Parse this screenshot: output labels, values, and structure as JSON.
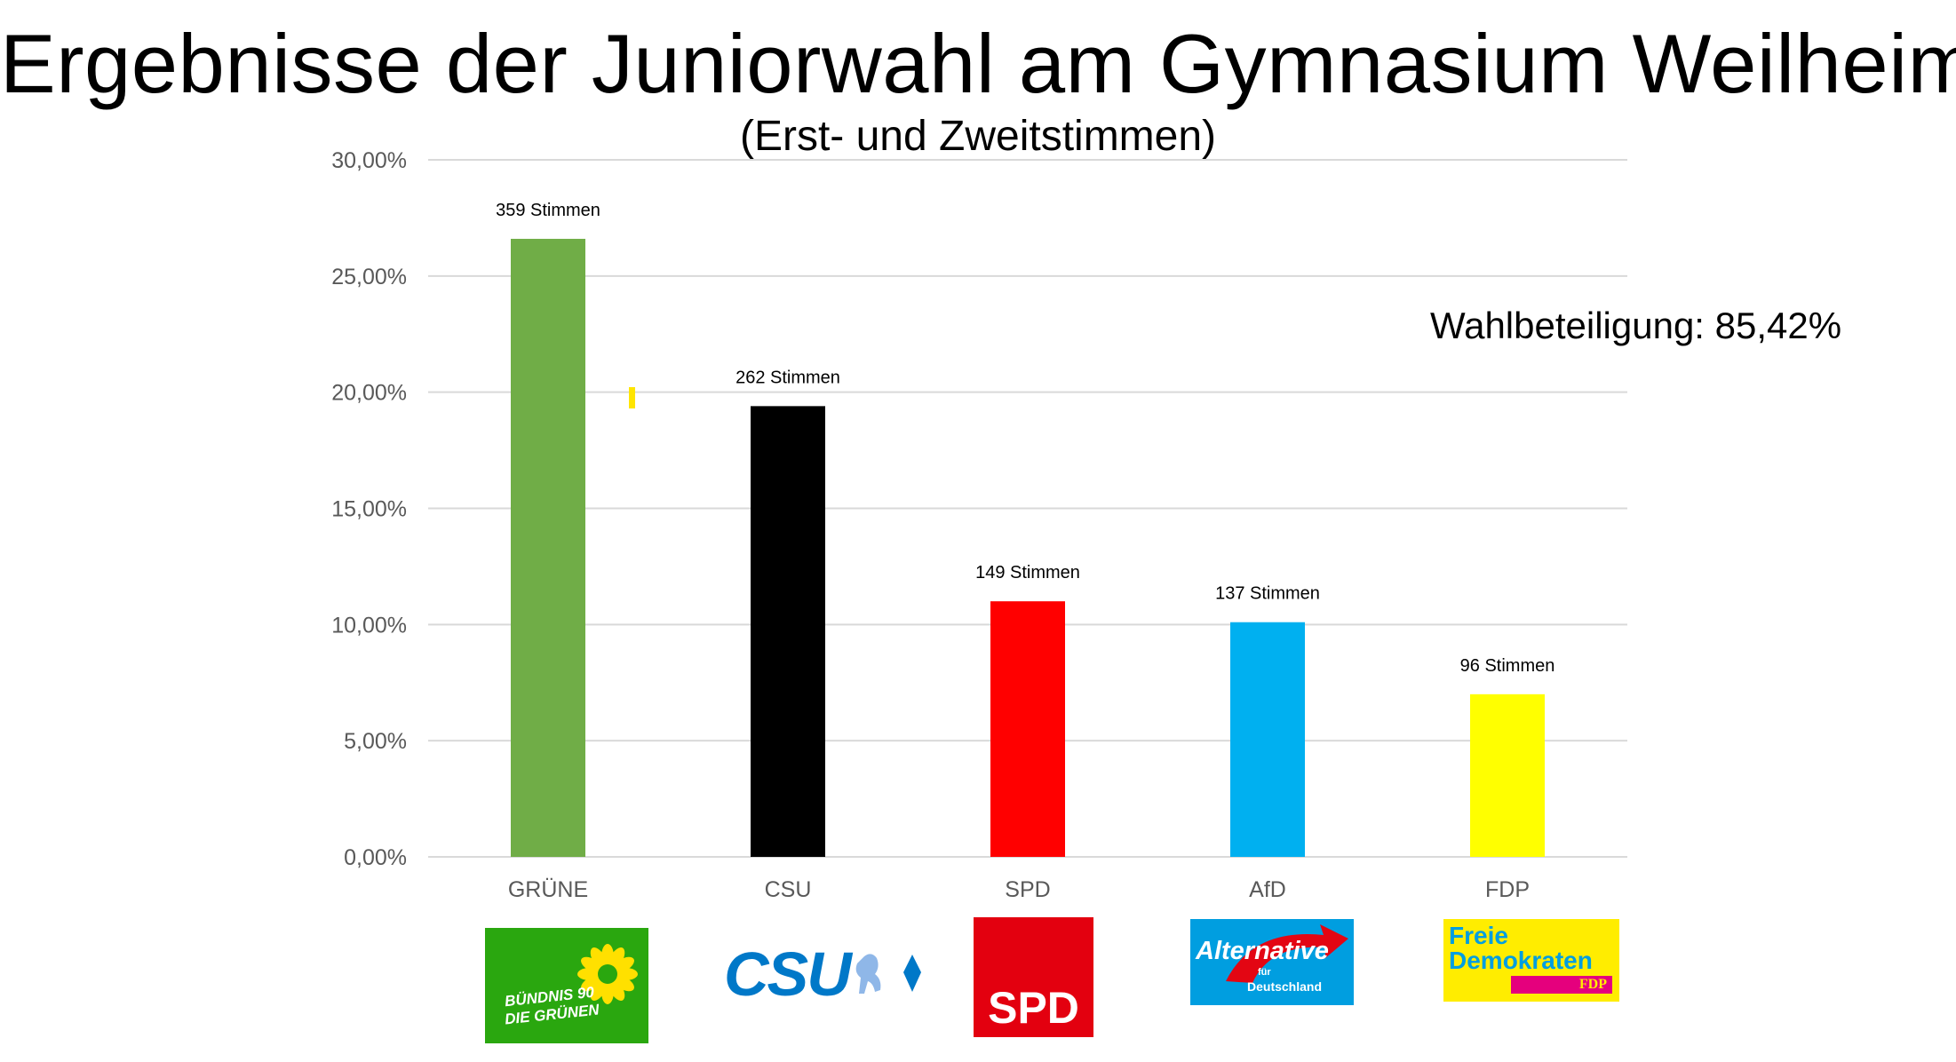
{
  "header": {
    "title": "Ergebnisse der Juniorwahl am Gymnasium Weilheim",
    "subtitle": "(Erst- und Zweitstimmen)"
  },
  "turnout_label": "Wahlbeteiligung: 85,42%",
  "chart_data": {
    "type": "bar",
    "categories": [
      "GRÜNE",
      "CSU",
      "SPD",
      "AfD",
      "FDP"
    ],
    "values": [
      26.6,
      19.4,
      11.0,
      10.1,
      7.0
    ],
    "value_labels": [
      "359 Stimmen",
      "262 Stimmen",
      "149 Stimmen",
      "137 Stimmen",
      "96 Stimmen"
    ],
    "colors": [
      "#70ad47",
      "#000000",
      "#ff0000",
      "#00b0f0",
      "#ffff00"
    ],
    "ylim": [
      0,
      30
    ],
    "yticks": [
      "0,00%",
      "5,00%",
      "10,00%",
      "15,00%",
      "20,00%",
      "25,00%",
      "30,00%"
    ],
    "grid": true
  },
  "logos": {
    "gruene": {
      "line1": "BÜNDNIS 90",
      "line2": "DIE GRÜNEN",
      "bg": "#2aa70f",
      "icon": "sunflower-icon"
    },
    "csu": {
      "text": "CSU",
      "color": "#0078c8",
      "icon": "bavarian-lion-icon"
    },
    "spd": {
      "text": "SPD",
      "bg": "#e3000f"
    },
    "afd": {
      "line1": "Alternative",
      "line2": "für",
      "line3": "Deutschland",
      "bg": "#009ee0",
      "icon": "red-arrow-icon"
    },
    "fdp": {
      "line1": "Freie",
      "line2": "Demokraten",
      "badge": "FDP",
      "bg": "#ffed00",
      "badge_bg": "#e5007d",
      "text_color": "#009ee0"
    }
  }
}
